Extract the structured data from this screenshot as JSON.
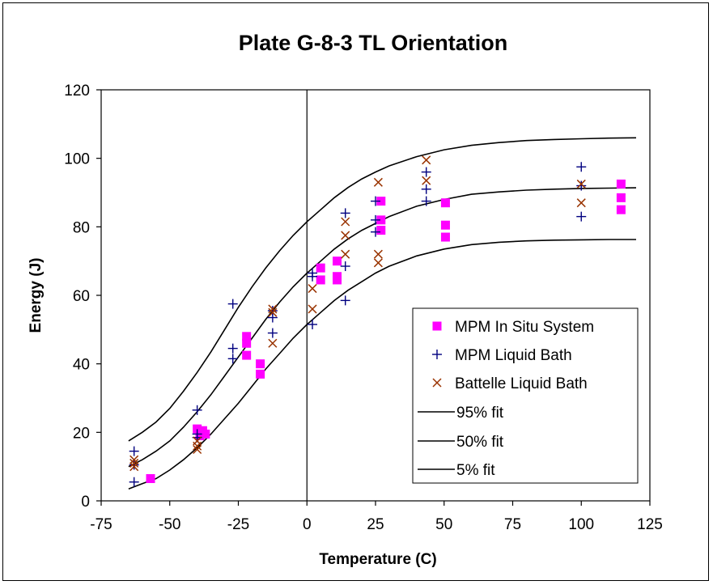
{
  "chart_data": {
    "type": "scatter",
    "title": "Plate G-8-3 TL Orientation",
    "xlabel": "Temperature (C)",
    "ylabel": "Energy (J)",
    "xlim": [
      -75,
      125
    ],
    "ylim": [
      0,
      120
    ],
    "x_ticks": [
      -75,
      -50,
      -25,
      0,
      25,
      50,
      75,
      100,
      125
    ],
    "y_ticks": [
      0,
      20,
      40,
      60,
      80,
      100,
      120
    ],
    "grid": "vertical and horizontal zero lines only",
    "legend_position": "bottom-right",
    "series": [
      {
        "name": "MPM In Situ System",
        "marker": "square",
        "color": "#FF00FF",
        "points": [
          [
            -57,
            6.5
          ],
          [
            -40,
            21
          ],
          [
            -39,
            19
          ],
          [
            -38,
            20.5
          ],
          [
            -37,
            19.5
          ],
          [
            -22,
            48
          ],
          [
            -22,
            46
          ],
          [
            -22,
            42.5
          ],
          [
            -17,
            40
          ],
          [
            -17,
            37
          ],
          [
            5,
            68
          ],
          [
            5,
            64.5
          ],
          [
            11,
            70
          ],
          [
            11,
            65.5
          ],
          [
            11,
            64.5
          ],
          [
            27,
            87.5
          ],
          [
            27,
            82
          ],
          [
            27,
            79
          ],
          [
            50.5,
            87
          ],
          [
            50.5,
            80.5
          ],
          [
            50.5,
            77
          ],
          [
            114.5,
            92.5
          ],
          [
            114.5,
            88.5
          ],
          [
            114.5,
            85
          ]
        ]
      },
      {
        "name": "MPM Liquid Bath",
        "marker": "plus",
        "color": "#000080",
        "points": [
          [
            -63,
            14.5
          ],
          [
            -63,
            10.5
          ],
          [
            -63,
            5.5
          ],
          [
            -40,
            26.5
          ],
          [
            -40,
            19.5
          ],
          [
            -40,
            18.5
          ],
          [
            -27,
            57.5
          ],
          [
            -27,
            44.5
          ],
          [
            -27,
            41.5
          ],
          [
            -12.5,
            55.5
          ],
          [
            -12.5,
            53.5
          ],
          [
            -12.5,
            49
          ],
          [
            2,
            66.5
          ],
          [
            2,
            65.5
          ],
          [
            2,
            51.5
          ],
          [
            14,
            84
          ],
          [
            14,
            68.5
          ],
          [
            14,
            58.5
          ],
          [
            25,
            87.5
          ],
          [
            25,
            82
          ],
          [
            25,
            78.5
          ],
          [
            43.5,
            96
          ],
          [
            43.5,
            91
          ],
          [
            43.5,
            87.5
          ],
          [
            100,
            97.5
          ],
          [
            100,
            92
          ],
          [
            100,
            83
          ]
        ]
      },
      {
        "name": "Battelle Liquid Bath",
        "marker": "x",
        "color": "#993300",
        "points": [
          [
            -63,
            12
          ],
          [
            -63,
            11
          ],
          [
            -63,
            10
          ],
          [
            -40,
            17.5
          ],
          [
            -40,
            16
          ],
          [
            -40,
            15
          ],
          [
            -12.5,
            56
          ],
          [
            -12.5,
            55
          ],
          [
            -12.5,
            46
          ],
          [
            2,
            62
          ],
          [
            2,
            56
          ],
          [
            14,
            81.5
          ],
          [
            14,
            77.5
          ],
          [
            14,
            72
          ],
          [
            26,
            93
          ],
          [
            26,
            72
          ],
          [
            26,
            69.5
          ],
          [
            43.5,
            99.5
          ],
          [
            43.5,
            93.5
          ],
          [
            100,
            92.5
          ],
          [
            100,
            87
          ]
        ]
      },
      {
        "name": "95% fit",
        "type": "line",
        "color": "#000000",
        "points": [
          [
            -65,
            17.5
          ],
          [
            -60,
            20
          ],
          [
            -55,
            23
          ],
          [
            -50,
            27
          ],
          [
            -45,
            32
          ],
          [
            -40,
            37.5
          ],
          [
            -35,
            43.5
          ],
          [
            -30,
            50
          ],
          [
            -25,
            56.5
          ],
          [
            -20,
            62.5
          ],
          [
            -15,
            68
          ],
          [
            -10,
            73
          ],
          [
            -5,
            77.5
          ],
          [
            0,
            81.5
          ],
          [
            5,
            85
          ],
          [
            10,
            88.5
          ],
          [
            15,
            91.5
          ],
          [
            20,
            94
          ],
          [
            25,
            96
          ],
          [
            30,
            97.8
          ],
          [
            40,
            100.5
          ],
          [
            50,
            102.5
          ],
          [
            60,
            103.8
          ],
          [
            70,
            104.6
          ],
          [
            80,
            105.2
          ],
          [
            90,
            105.5
          ],
          [
            100,
            105.7
          ],
          [
            110,
            105.9
          ],
          [
            120,
            106
          ]
        ]
      },
      {
        "name": "50% fit",
        "type": "line",
        "color": "#000000",
        "points": [
          [
            -65,
            10
          ],
          [
            -60,
            12
          ],
          [
            -55,
            14.5
          ],
          [
            -50,
            17.5
          ],
          [
            -45,
            21.5
          ],
          [
            -40,
            26
          ],
          [
            -35,
            31
          ],
          [
            -30,
            36.5
          ],
          [
            -25,
            42
          ],
          [
            -20,
            47.5
          ],
          [
            -15,
            53
          ],
          [
            -10,
            58
          ],
          [
            -5,
            62.5
          ],
          [
            0,
            66.5
          ],
          [
            5,
            70
          ],
          [
            10,
            73.5
          ],
          [
            15,
            76.5
          ],
          [
            20,
            79
          ],
          [
            25,
            81
          ],
          [
            30,
            83
          ],
          [
            40,
            86
          ],
          [
            50,
            88
          ],
          [
            60,
            89.5
          ],
          [
            70,
            90.2
          ],
          [
            80,
            90.7
          ],
          [
            90,
            91
          ],
          [
            100,
            91.2
          ],
          [
            110,
            91.3
          ],
          [
            120,
            91.4
          ]
        ]
      },
      {
        "name": "5% fit",
        "type": "line",
        "color": "#000000",
        "points": [
          [
            -65,
            3.5
          ],
          [
            -60,
            5
          ],
          [
            -55,
            6.5
          ],
          [
            -50,
            9
          ],
          [
            -45,
            12
          ],
          [
            -40,
            15.5
          ],
          [
            -35,
            19.5
          ],
          [
            -30,
            24
          ],
          [
            -25,
            28.5
          ],
          [
            -20,
            33.5
          ],
          [
            -15,
            38.5
          ],
          [
            -10,
            43
          ],
          [
            -5,
            47.5
          ],
          [
            0,
            51.5
          ],
          [
            5,
            55
          ],
          [
            10,
            58.5
          ],
          [
            15,
            61.5
          ],
          [
            20,
            64
          ],
          [
            25,
            66.5
          ],
          [
            30,
            68.5
          ],
          [
            40,
            71.5
          ],
          [
            50,
            73.5
          ],
          [
            60,
            74.8
          ],
          [
            70,
            75.5
          ],
          [
            80,
            75.9
          ],
          [
            90,
            76.1
          ],
          [
            100,
            76.2
          ],
          [
            110,
            76.3
          ],
          [
            120,
            76.3
          ]
        ]
      }
    ]
  },
  "colors": {
    "in_situ": "#FF00FF",
    "liquid_bath": "#000080",
    "battelle": "#993300",
    "fit_line": "#000000"
  }
}
